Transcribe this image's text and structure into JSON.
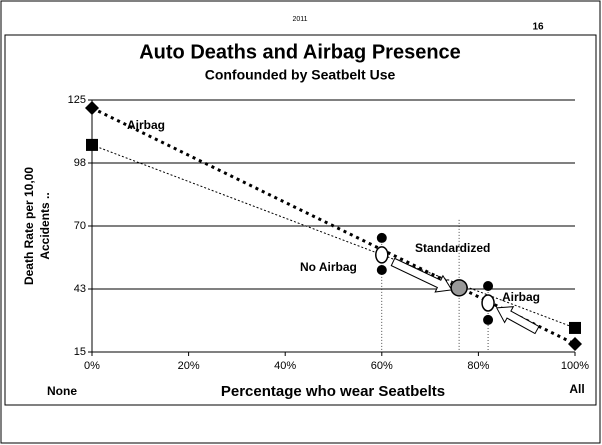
{
  "header": {
    "year": "2011",
    "page": "16"
  },
  "chart_data": {
    "type": "line",
    "title": "Auto Deaths and Airbag Presence",
    "subtitle": "Confounded by Seatbelt Use",
    "y_label": [
      "Death Rate per 10,00",
      "Accidents .."
    ],
    "x_label": "Percentage who wear Seatbelts",
    "x_end_labels": [
      "None",
      "All"
    ],
    "xlim": [
      0,
      100
    ],
    "xticks": [
      {
        "value": 0,
        "label": "0%"
      },
      {
        "value": 20,
        "label": "20%"
      },
      {
        "value": 40,
        "label": "40%"
      },
      {
        "value": 60,
        "label": "60%"
      },
      {
        "value": 80,
        "label": "80%"
      },
      {
        "value": 100,
        "label": "100%"
      }
    ],
    "ylim": [
      15,
      125
    ],
    "yticks": [
      15,
      {
        "value": 42.5,
        "label": "43"
      },
      70,
      {
        "value": 97.5,
        "label": "98"
      },
      125
    ],
    "grid": true,
    "series": [
      {
        "x": [
          0,
          100
        ],
        "values": [
          121.5,
          18.5
        ],
        "color": "#000000",
        "marker": "diamond",
        "style": "thick-dotted"
      },
      {
        "x": [
          0,
          100
        ],
        "values": [
          105.4,
          25.5
        ],
        "color": "#000000",
        "marker": "square",
        "style": "thin-dotted"
      }
    ],
    "points": [
      {
        "x": 60,
        "y": 64.8,
        "fill": "#000000"
      },
      {
        "x": 60,
        "y": 57.4,
        "fill": "#ffffff"
      },
      {
        "x": 60,
        "y": 50.8,
        "fill": "#000000"
      },
      {
        "x": 82,
        "y": 43.8,
        "fill": "#000000"
      },
      {
        "x": 82,
        "y": 36.4,
        "fill": "#ffffff"
      },
      {
        "x": 82,
        "y": 29,
        "fill": "#000000"
      },
      {
        "x": 76,
        "y": 43,
        "fill": "#999999"
      }
    ],
    "annotations": [
      "Airbag",
      "No Airbag",
      "Standardized",
      "Airbag"
    ]
  }
}
